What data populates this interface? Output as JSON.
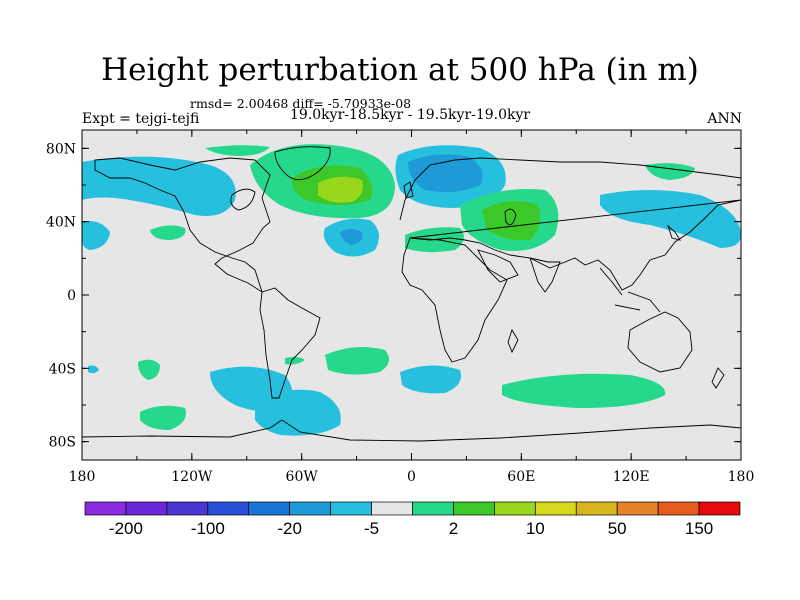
{
  "header": {
    "title": "Height perturbation at 500 hPa (in m)",
    "stats": "rmsd= 2.00468 diff= -5.70933e-08",
    "period": "19.0kyr-18.5kyr - 19.5kyr-19.0kyr",
    "experiment": "Expt = tejgi-tejfi",
    "season": "ANN"
  },
  "axes": {
    "lat_labels": [
      {
        "text": "80N",
        "lat": 80
      },
      {
        "text": "40N",
        "lat": 40
      },
      {
        "text": "0",
        "lat": 0
      },
      {
        "text": "40S",
        "lat": -40
      },
      {
        "text": "80S",
        "lat": -80
      }
    ],
    "lon_labels": [
      {
        "text": "180",
        "lon": -180
      },
      {
        "text": "120W",
        "lon": -120
      },
      {
        "text": "60W",
        "lon": -60
      },
      {
        "text": "0",
        "lon": 0
      },
      {
        "text": "60E",
        "lon": 60
      },
      {
        "text": "120E",
        "lon": 120
      },
      {
        "text": "180",
        "lon": 180
      }
    ],
    "lon_range": [
      -180,
      180
    ],
    "lat_range": [
      -90,
      90
    ]
  },
  "colorbar": {
    "colors": [
      "#8a2be2",
      "#6a28d8",
      "#4a37d2",
      "#2850d8",
      "#1a73d8",
      "#1e9ad6",
      "#26c0de",
      "#e6e6e6",
      "#26d88c",
      "#3cc828",
      "#99d61e",
      "#d8d81e",
      "#d8b41e",
      "#e6822a",
      "#e65a1e",
      "#e60a0a"
    ],
    "tick_labels": [
      "-200",
      "-100",
      "-20",
      "-5",
      "2",
      "10",
      "50",
      "150"
    ]
  },
  "map_fields": {
    "background": "#e6e6e6",
    "lightblue": "#26c0de",
    "midblue": "#1e9ad6",
    "lightgreen": "#26d88c",
    "green": "#3cc828",
    "yellowgreen": "#99d61e"
  }
}
